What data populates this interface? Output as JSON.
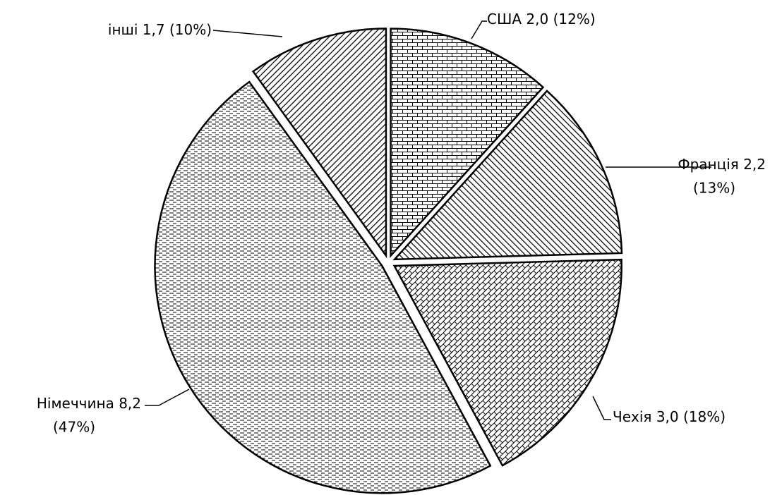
{
  "chart_data": {
    "type": "pie",
    "categories": [
      "США",
      "Франція",
      "Чехія",
      "Німеччина",
      "інші"
    ],
    "values": [
      2.0,
      2.2,
      3.0,
      8.2,
      1.7
    ],
    "value_labels": [
      "2,0",
      "2,2",
      "3,0",
      "8,2",
      "1,7"
    ],
    "percents": [
      12,
      13,
      18,
      47,
      10
    ],
    "percent_labels": [
      "(12%)",
      "(13%)",
      "(18%)",
      "(47%)",
      "(10%)"
    ],
    "color": "#000000"
  }
}
